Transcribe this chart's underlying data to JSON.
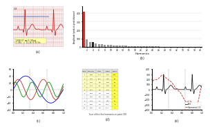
{
  "panel_a_label": "(a)",
  "panel_b_label": "(b)",
  "panel_c_label": "(c)",
  "panel_d_label": "(d)",
  "panel_e_label": "(e)",
  "ecg_bg": "#f0b8b8",
  "ecg_grid_major": "#d08080",
  "ecg_grid_minor": "#e8a0a0",
  "ecg_line_color": "#cc2222",
  "harmonics_xlabel": "Harmonics",
  "harmonics_ylabel": "Amplitude (peak-to-peak distance)",
  "harmonics_bar_color": "#999999",
  "harmonics_bar_color2": "#cc3333",
  "harmonics_bar_black": "#222222",
  "harmonics_values": [
    420,
    95,
    55,
    60,
    45,
    35,
    30,
    28,
    25,
    22,
    20,
    18,
    16,
    15,
    14,
    13,
    12,
    11,
    10,
    9,
    8,
    8,
    7,
    7,
    6,
    6,
    5,
    5,
    4,
    4,
    3,
    3,
    3,
    2,
    2,
    2,
    2,
    2,
    1,
    1
  ],
  "sine_colors": [
    "#0000cc",
    "#cc2222",
    "#008800"
  ],
  "sine_sum_color": "#333333",
  "sine_label": "Sum of first five harmonics in point 300",
  "sine_ylabel_max": 60,
  "ecg_ylabel_max": 400,
  "legend_ecg": "ECG",
  "legend_harm": "Harmonics 1-5",
  "legend_ecg_color": "#222222",
  "legend_harm_color": "#cc2222",
  "annotation_text1": "1500/27 mm/S 93bpm",
  "annotation_text2": "1.08s -> 11.26 0.93 Hz",
  "bg_color": "#ffffff",
  "grid_color": "#dddddd"
}
